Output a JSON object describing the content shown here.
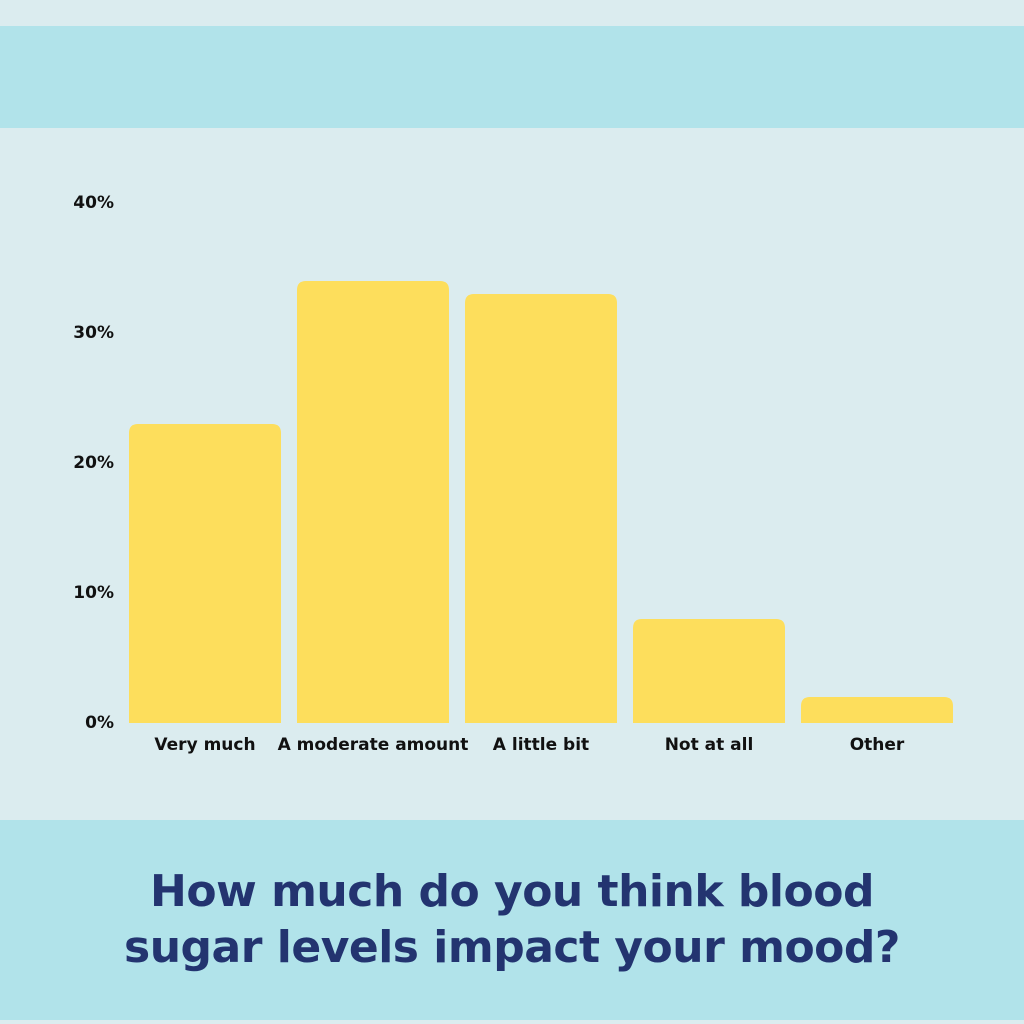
{
  "colors": {
    "background": "#dbecef",
    "band": "#b1e3ea",
    "bar": "#fdde5c",
    "title": "#233470",
    "axis_text": "#111111"
  },
  "chart_data": {
    "type": "bar",
    "title_lines": [
      "How much do you think blood",
      "sugar levels impact your mood?"
    ],
    "categories": [
      "Very much",
      "A moderate amount",
      "A little bit",
      "Not at all",
      "Other"
    ],
    "values": [
      23,
      34,
      33,
      8,
      2
    ],
    "unit": "%",
    "ylim": [
      0,
      40
    ],
    "yticks": [
      0,
      10,
      20,
      30,
      40
    ],
    "ytick_labels": [
      "0%",
      "10%",
      "20%",
      "30%",
      "40%"
    ],
    "grid": false,
    "legend": "none"
  }
}
